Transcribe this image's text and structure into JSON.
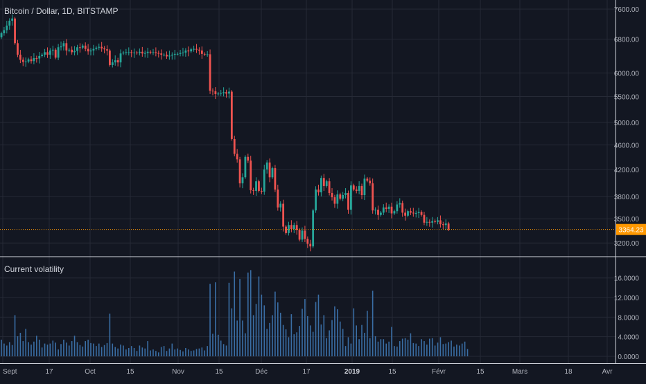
{
  "chart_data": [
    {
      "type": "candlestick",
      "title": "Bitcoin / Dollar, 1D, BITSTAMP",
      "x_ticks": [
        "Sept",
        "17",
        "Oct",
        "15",
        "Nov",
        "15",
        "Déc",
        "17",
        "2019",
        "15",
        "Févr",
        "15",
        "Mars",
        "18",
        "Avr"
      ],
      "y_ticks": [
        "7600.00",
        "6800.00",
        "6000.00",
        "5500.00",
        "5000.00",
        "4600.00",
        "4200.00",
        "3800.00",
        "3500.00",
        "3200.00"
      ],
      "y_scale": "log",
      "ylim": [
        3050,
        7700
      ],
      "last_price": "3364.23",
      "grid": true,
      "closes": [
        6950,
        7030,
        7150,
        7280,
        7340,
        6700,
        6420,
        6300,
        6250,
        6260,
        6310,
        6270,
        6340,
        6330,
        6390,
        6420,
        6480,
        6420,
        6520,
        6540,
        6350,
        6600,
        6620,
        6700,
        6520,
        6540,
        6480,
        6510,
        6600,
        6590,
        6640,
        6560,
        6500,
        6520,
        6560,
        6590,
        6610,
        6570,
        6550,
        6520,
        6180,
        6240,
        6290,
        6240,
        6450,
        6470,
        6480,
        6480,
        6460,
        6470,
        6460,
        6490,
        6450,
        6460,
        6490,
        6470,
        6480,
        6460,
        6450,
        6420,
        6420,
        6380,
        6400,
        6420,
        6440,
        6440,
        6460,
        6470,
        6520,
        6500,
        6550,
        6560,
        6540,
        6520,
        6440,
        6430,
        6430,
        5620,
        5610,
        5550,
        5560,
        5570,
        5590,
        5560,
        5600,
        4700,
        4450,
        4360,
        3990,
        4080,
        4400,
        4340,
        3890,
        3880,
        4020,
        3880,
        3870,
        4200,
        4310,
        4080,
        4220,
        3900,
        3650,
        3700,
        3400,
        3320,
        3420,
        3370,
        3420,
        3360,
        3240,
        3350,
        3250,
        3190,
        3160,
        3610,
        3900,
        3860,
        4070,
        3950,
        4020,
        3850,
        3790,
        3700,
        3830,
        3770,
        3820,
        3850,
        3620,
        3960,
        3900,
        3880,
        3950,
        3820,
        4060,
        4030,
        3990,
        3610,
        3620,
        3550,
        3580,
        3650,
        3630,
        3660,
        3570,
        3600,
        3690,
        3710,
        3580,
        3540,
        3600,
        3580,
        3570,
        3575,
        3590,
        3550,
        3450,
        3460,
        3450,
        3470,
        3460,
        3480,
        3430,
        3420,
        3440,
        3364.23
      ]
    },
    {
      "type": "bar",
      "title": "Current volatility",
      "y_ticks": [
        "16.0000",
        "12.0000",
        "8.0000",
        "4.0000",
        "0.0000"
      ],
      "ylim": [
        0,
        18.5
      ],
      "grid": true,
      "values": [
        3.4,
        2.6,
        2.2,
        2.9,
        2.3,
        8.4,
        4.1,
        4.8,
        3.1,
        5.6,
        2.9,
        2.4,
        3.0,
        4.2,
        3.4,
        1.8,
        2.6,
        2.4,
        2.6,
        3.2,
        2.8,
        1.4,
        2.5,
        3.4,
        2.8,
        2.2,
        3.1,
        4.2,
        2.9,
        2.3,
        2.0,
        3.1,
        3.4,
        2.7,
        2.6,
        2.1,
        2.6,
        1.9,
        2.3,
        2.7,
        8.7,
        2.6,
        1.9,
        1.6,
        2.4,
        2.2,
        1.4,
        1.7,
        2.1,
        1.7,
        1.1,
        2.2,
        1.8,
        1.6,
        3.1,
        1.2,
        1.4,
        1.1,
        0.8,
        1.9,
        2.1,
        1.1,
        1.6,
        2.6,
        1.4,
        1.6,
        1.3,
        1.0,
        1.7,
        1.4,
        1.1,
        1.2,
        1.5,
        1.6,
        1.8,
        1.2,
        2.1,
        14.8,
        4.6,
        15.1,
        4.4,
        3.2,
        2.5,
        2.2,
        15.0,
        9.8,
        17.3,
        7.3,
        15.8,
        7.3,
        4.7,
        17.1,
        17.6,
        8.4,
        10.7,
        16.3,
        12.6,
        10.4,
        5.6,
        6.8,
        8.4,
        13.2,
        11.0,
        8.9,
        6.4,
        5.5,
        3.9,
        8.6,
        4.5,
        4.9,
        6.2,
        9.7,
        11.7,
        8.2,
        6.3,
        5.0,
        11.1,
        12.6,
        6.5,
        8.4,
        3.7,
        5.3,
        7.4,
        10.2,
        9.6,
        7.1,
        5.6,
        2.1,
        3.9,
        2.6,
        9.8,
        6.3,
        3.5,
        6.4,
        4.8,
        9.3,
        3.7,
        13.4,
        4.1,
        3.0,
        3.5,
        3.5,
        2.6,
        3.0,
        6.0,
        2.1,
        2.0,
        3.1,
        3.6,
        3.7,
        3.4,
        4.7,
        2.7,
        2.6,
        2.1,
        3.5,
        3.1,
        2.4,
        3.6,
        3.7,
        2.2,
        2.8,
        3.9,
        2.5,
        2.6,
        2.9,
        3.2,
        2.0,
        2.4,
        2.2,
        2.6,
        3.0,
        1.5
      ]
    }
  ],
  "colors": {
    "background": "#131722",
    "grid": "#262a36",
    "axis_text": "#b2b5be",
    "separator": "#d1d4dc",
    "up": "#26a69a",
    "down": "#ef5350",
    "volatility_bar": "#3a6ea5",
    "price_line": "#ff9800",
    "price_label": "#ff9800"
  }
}
